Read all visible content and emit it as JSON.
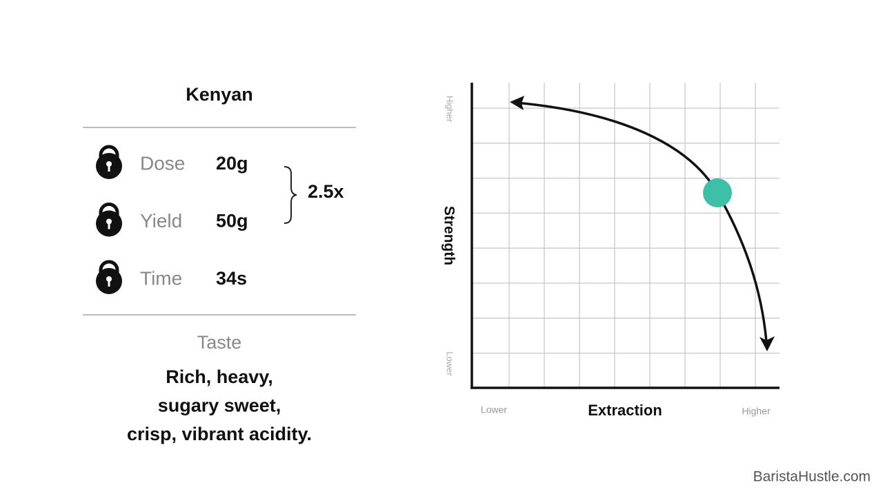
{
  "title": "Kenyan",
  "recipe": [
    {
      "label": "Dose",
      "value": "20g"
    },
    {
      "label": "Yield",
      "value": "50g"
    },
    {
      "label": "Time",
      "value": "34s"
    }
  ],
  "ratio": "2.5x",
  "taste": {
    "heading": "Taste",
    "lines": [
      "Rich, heavy,",
      "sugary sweet,",
      "crisp, vibrant acidity."
    ]
  },
  "diagram": {
    "y_axis": {
      "label": "Strength",
      "high": "Higher",
      "low": "Lower"
    },
    "x_axis": {
      "label": "Extraction",
      "low": "Lower",
      "high": "Higher"
    }
  },
  "watermark": "BaristaHustle.com"
}
